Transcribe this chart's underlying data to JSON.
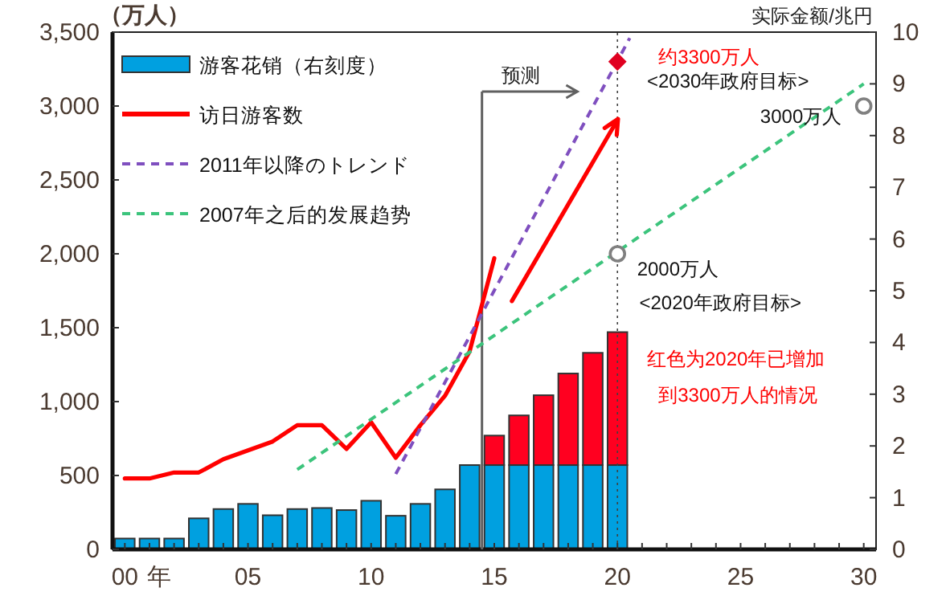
{
  "chart_data": {
    "type": "bar",
    "stacked": true,
    "legend": "top left",
    "ylabel": "（万人）",
    "y2label": "实际金额/兆円",
    "xlim": [
      1999.5,
      2030.5
    ],
    "xlabel": "年",
    "x": [
      2000,
      2001,
      2002,
      2003,
      2004,
      2005,
      2006,
      2007,
      2008,
      2009,
      2010,
      2011,
      2012,
      2013,
      2014,
      2015,
      2016,
      2017,
      2018,
      2019,
      2020
    ],
    "xticks": [
      {
        "value": 2000,
        "label": "00"
      },
      {
        "value": 2001,
        "label": null
      },
      {
        "value": 2002,
        "label": null
      },
      {
        "value": 2003,
        "label": null
      },
      {
        "value": 2004,
        "label": null
      },
      {
        "value": 2005,
        "label": "05"
      },
      {
        "value": 2006,
        "label": null
      },
      {
        "value": 2007,
        "label": null
      },
      {
        "value": 2008,
        "label": null
      },
      {
        "value": 2009,
        "label": null
      },
      {
        "value": 2010,
        "label": "10"
      },
      {
        "value": 2011,
        "label": null
      },
      {
        "value": 2012,
        "label": null
      },
      {
        "value": 2013,
        "label": null
      },
      {
        "value": 2014,
        "label": null
      },
      {
        "value": 2015,
        "label": "15"
      },
      {
        "value": 2016,
        "label": null
      },
      {
        "value": 2017,
        "label": null
      },
      {
        "value": 2018,
        "label": null
      },
      {
        "value": 2019,
        "label": null
      },
      {
        "value": 2020,
        "label": "20"
      },
      {
        "value": 2021,
        "label": null
      },
      {
        "value": 2022,
        "label": null
      },
      {
        "value": 2023,
        "label": null
      },
      {
        "value": 2024,
        "label": null
      },
      {
        "value": 2025,
        "label": "25"
      },
      {
        "value": 2026,
        "label": null
      },
      {
        "value": 2027,
        "label": null
      },
      {
        "value": 2028,
        "label": null
      },
      {
        "value": 2029,
        "label": null
      },
      {
        "value": 2030,
        "label": "30"
      }
    ],
    "ylim": [
      0,
      3500
    ],
    "yticks": [
      0,
      {
        "value": 500,
        "label": "500"
      },
      {
        "value": 1000,
        "label": "1,000"
      },
      {
        "value": 1500,
        "label": "1,500"
      },
      {
        "value": 2000,
        "label": "2,000"
      },
      {
        "value": 2500,
        "label": "2,500"
      },
      {
        "value": 3000,
        "label": "3,000"
      },
      {
        "value": 3500,
        "label": "3,500"
      }
    ],
    "y2lim": [
      0,
      10
    ],
    "y2ticks": [
      0,
      1,
      2,
      3,
      4,
      5,
      6,
      7,
      8,
      9,
      10
    ],
    "series": [
      {
        "name": "游客花销（右刻度）",
        "color": "#00a0e0",
        "axis": "y2",
        "values": [
          0.21,
          0.21,
          0.21,
          0.6,
          0.78,
          0.88,
          0.66,
          0.78,
          0.8,
          0.76,
          0.94,
          0.65,
          0.88,
          1.16,
          1.63,
          1.63,
          1.63,
          1.63,
          1.63,
          1.63,
          1.63
        ]
      },
      {
        "color": "#ff0020",
        "axis": "y2",
        "values": [
          null,
          null,
          null,
          null,
          null,
          null,
          null,
          null,
          null,
          null,
          null,
          null,
          null,
          null,
          null,
          0.57,
          0.96,
          1.35,
          1.77,
          2.17,
          2.57
        ]
      },
      {
        "type": "line",
        "name": "访日游客数",
        "color": "#ff0000",
        "line_style": "solid",
        "x": [
          2000,
          2001,
          2002,
          2003,
          2004,
          2005,
          2006,
          2007,
          2008,
          2009,
          2010,
          2011,
          2012,
          2013,
          2014,
          2015
        ],
        "values": [
          480,
          480,
          520,
          520,
          610,
          670,
          730,
          840,
          840,
          680,
          860,
          620,
          840,
          1040,
          1340,
          1970
        ]
      },
      {
        "type": "line",
        "name": "2011年以降のトレンド",
        "color": "#7f4fbf",
        "line_style": "dashed",
        "x": [
          2011,
          2020.5
        ],
        "values": [
          510,
          3460
        ]
      },
      {
        "type": "line",
        "name": "2007年之后的发展趋势",
        "color": "#3cc47c",
        "line_style": "dashed",
        "x": [
          2007,
          2030
        ],
        "values": [
          540,
          3150
        ]
      },
      {
        "type": "scatter",
        "color": "#e00020",
        "marker": "diamond",
        "x": [
          2020
        ],
        "values": [
          3300
        ]
      },
      {
        "type": "scatter",
        "color": "#808080",
        "marker": "circle",
        "x": [
          2020,
          2030
        ],
        "values": [
          2000,
          3000
        ]
      }
    ],
    "ref_lines": [
      {
        "axis": "x",
        "value": 2014.5,
        "label": "预测",
        "color": "#606060",
        "line_style": "solid"
      },
      {
        "axis": "x",
        "value": 2020,
        "color": "#404040",
        "line_style": "dotted"
      }
    ],
    "annotations": [
      "约3300万人",
      "<2030年政府目标>",
      "3000万人",
      "2000万人",
      "<2020年政府目标>",
      "红色为2020年已增加",
      "到3300万人的情况"
    ]
  }
}
